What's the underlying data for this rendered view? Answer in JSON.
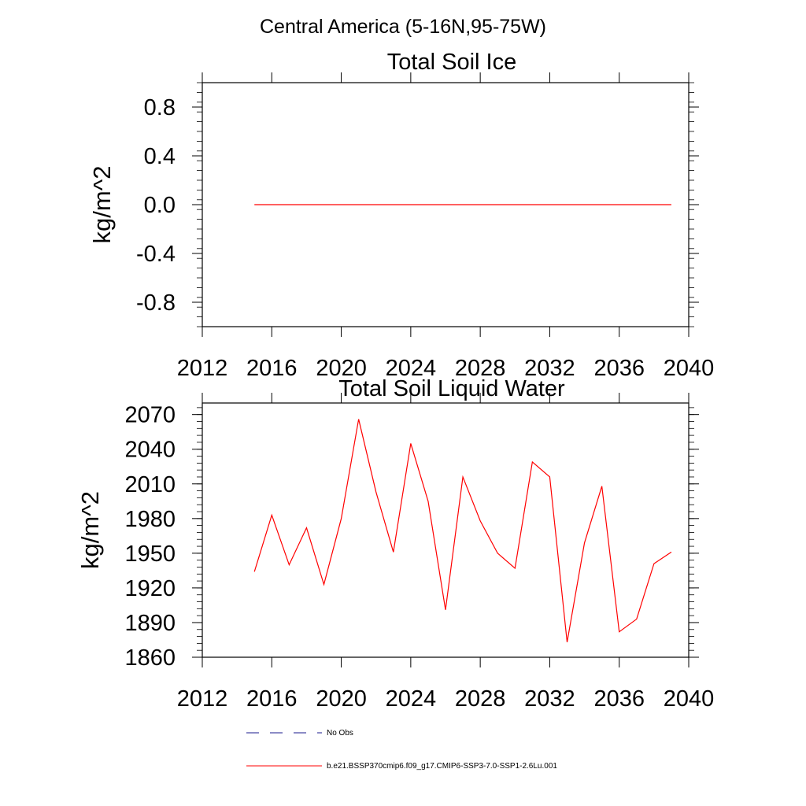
{
  "figure": {
    "suptitle": "Central America (5-16N,95-75W)"
  },
  "legend": {
    "entries": [
      {
        "label": "No Obs",
        "color": "#1a1a8c",
        "style": "dashed"
      },
      {
        "label": "b.e21.BSSP370cmip6.f09_g17.CMIP6-SSP3-7.0-SSP1-2.6Lu.001",
        "color": "#ff0000",
        "style": "solid"
      }
    ]
  },
  "chart_data": [
    {
      "type": "line",
      "title": "Total Soil Ice",
      "ylabel": "kg/m^2",
      "xlabel": "",
      "xlim": [
        2012,
        2040
      ],
      "ylim": [
        -1.0,
        1.0
      ],
      "xticks": [
        "2012",
        "2016",
        "2020",
        "2024",
        "2028",
        "2032",
        "2036",
        "2040"
      ],
      "yticks": [
        "-0.8",
        "-0.4",
        "0.0",
        "0.4",
        "0.8"
      ],
      "grid": false,
      "series": [
        {
          "color": "#ff0000",
          "x": [
            2015,
            2016,
            2017,
            2018,
            2019,
            2020,
            2021,
            2022,
            2023,
            2024,
            2025,
            2026,
            2027,
            2028,
            2029,
            2030,
            2031,
            2032,
            2033,
            2034,
            2035,
            2036,
            2037,
            2038,
            2039
          ],
          "y": [
            0,
            0,
            0,
            0,
            0,
            0,
            0,
            0,
            0,
            0,
            0,
            0,
            0,
            0,
            0,
            0,
            0,
            0,
            0,
            0,
            0,
            0,
            0,
            0,
            0
          ]
        }
      ]
    },
    {
      "type": "line",
      "title": "Total Soil Liquid Water",
      "ylabel": "kg/m^2",
      "xlabel": "",
      "xlim": [
        2012,
        2040
      ],
      "ylim": [
        1860,
        2080
      ],
      "xticks": [
        "2012",
        "2016",
        "2020",
        "2024",
        "2028",
        "2032",
        "2036",
        "2040"
      ],
      "yticks": [
        "1860",
        "1890",
        "1920",
        "1950",
        "1980",
        "2010",
        "2040",
        "2070"
      ],
      "grid": false,
      "series": [
        {
          "color": "#ff0000",
          "x": [
            2015,
            2016,
            2017,
            2018,
            2019,
            2020,
            2021,
            2022,
            2023,
            2024,
            2025,
            2026,
            2027,
            2028,
            2029,
            2030,
            2031,
            2032,
            2033,
            2034,
            2035,
            2036,
            2037,
            2038,
            2039
          ],
          "y": [
            1934,
            1983,
            1940,
            1972,
            1923,
            1980,
            2066,
            2003,
            1951,
            2045,
            1995,
            1901,
            2016,
            1978,
            1950,
            1937,
            2029,
            2016,
            1873,
            1959,
            2008,
            1882,
            1893,
            1941,
            1951
          ]
        }
      ]
    }
  ]
}
